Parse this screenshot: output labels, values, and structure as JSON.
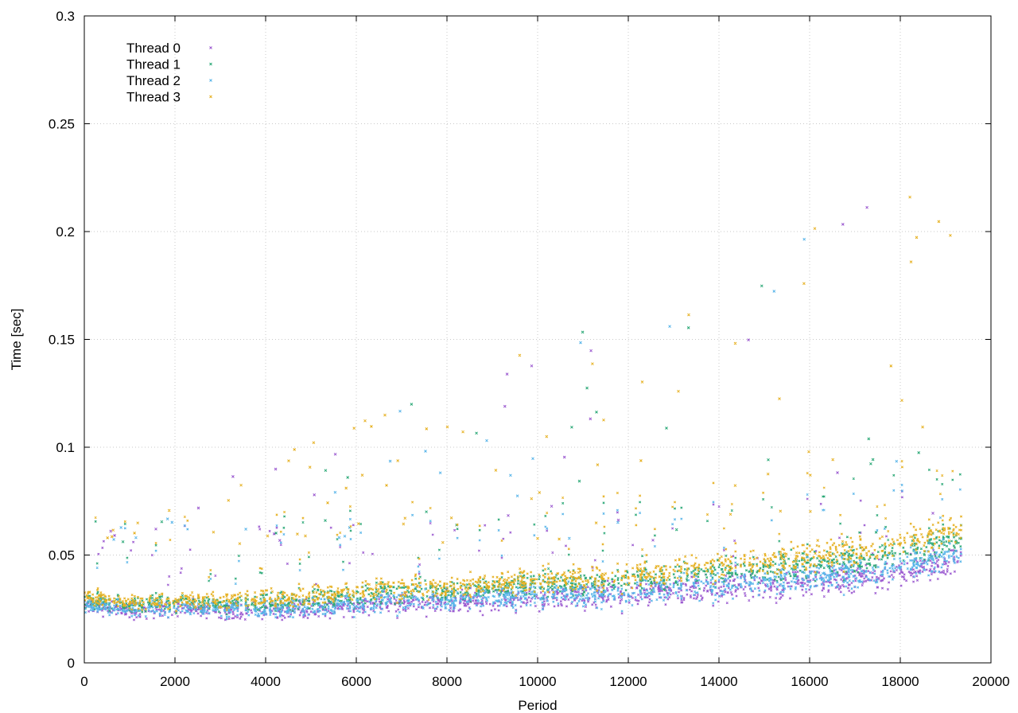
{
  "chart_data": {
    "type": "scatter",
    "title": "",
    "xlabel": "Period",
    "ylabel": "Time [sec]",
    "xlim": [
      0,
      20000
    ],
    "ylim": [
      0,
      0.3
    ],
    "x_ticks": [
      "0",
      "2000",
      "4000",
      "6000",
      "8000",
      "10000",
      "12000",
      "14000",
      "16000",
      "18000",
      "20000"
    ],
    "y_ticks": [
      "0",
      "0.05",
      "0.1",
      "0.15",
      "0.2",
      "0.25",
      "0.3"
    ],
    "grid": true,
    "legend_position": "top-left",
    "marker": "small cross",
    "series": [
      {
        "name": "Thread 0",
        "color": "#9b59d0",
        "x_range": [
          0,
          19350
        ],
        "points": [
          [
            0,
            0.027
          ],
          [
            1000,
            0.024
          ],
          [
            2000,
            0.025
          ],
          [
            3000,
            0.024
          ],
          [
            4000,
            0.024
          ],
          [
            5000,
            0.025
          ],
          [
            6000,
            0.026
          ],
          [
            7000,
            0.028
          ],
          [
            8000,
            0.028
          ],
          [
            9000,
            0.029
          ],
          [
            10000,
            0.03
          ],
          [
            11000,
            0.031
          ],
          [
            12000,
            0.032
          ],
          [
            13000,
            0.033
          ],
          [
            14000,
            0.035
          ],
          [
            15000,
            0.036
          ],
          [
            16000,
            0.037
          ],
          [
            17000,
            0.039
          ],
          [
            18000,
            0.042
          ],
          [
            19000,
            0.046
          ],
          [
            19350,
            0.048
          ]
        ]
      },
      {
        "name": "Thread 1",
        "color": "#2aa876",
        "x_range": [
          0,
          19350
        ],
        "points": [
          [
            0,
            0.029
          ],
          [
            1000,
            0.027
          ],
          [
            2000,
            0.028
          ],
          [
            3000,
            0.027
          ],
          [
            4000,
            0.028
          ],
          [
            5000,
            0.029
          ],
          [
            6000,
            0.031
          ],
          [
            7000,
            0.033
          ],
          [
            8000,
            0.033
          ],
          [
            9000,
            0.035
          ],
          [
            10000,
            0.036
          ],
          [
            11000,
            0.037
          ],
          [
            12000,
            0.038
          ],
          [
            13000,
            0.04
          ],
          [
            14000,
            0.042
          ],
          [
            15000,
            0.044
          ],
          [
            16000,
            0.045
          ],
          [
            17000,
            0.048
          ],
          [
            18000,
            0.052
          ],
          [
            19000,
            0.056
          ],
          [
            19350,
            0.058
          ]
        ]
      },
      {
        "name": "Thread 2",
        "color": "#56b4e9",
        "x_range": [
          0,
          19350
        ],
        "points": [
          [
            0,
            0.027
          ],
          [
            1000,
            0.025
          ],
          [
            2000,
            0.025
          ],
          [
            3000,
            0.025
          ],
          [
            4000,
            0.025
          ],
          [
            5000,
            0.026
          ],
          [
            6000,
            0.027
          ],
          [
            7000,
            0.029
          ],
          [
            8000,
            0.029
          ],
          [
            9000,
            0.03
          ],
          [
            10000,
            0.031
          ],
          [
            11000,
            0.032
          ],
          [
            12000,
            0.033
          ],
          [
            13000,
            0.035
          ],
          [
            14000,
            0.036
          ],
          [
            15000,
            0.038
          ],
          [
            16000,
            0.039
          ],
          [
            17000,
            0.041
          ],
          [
            18000,
            0.045
          ],
          [
            19000,
            0.049
          ],
          [
            19350,
            0.051
          ]
        ]
      },
      {
        "name": "Thread 3",
        "color": "#e6b020",
        "x_range": [
          0,
          19350
        ],
        "points": [
          [
            0,
            0.031
          ],
          [
            1000,
            0.028
          ],
          [
            2000,
            0.029
          ],
          [
            3000,
            0.029
          ],
          [
            4000,
            0.03
          ],
          [
            5000,
            0.031
          ],
          [
            6000,
            0.033
          ],
          [
            7000,
            0.035
          ],
          [
            8000,
            0.035
          ],
          [
            9000,
            0.037
          ],
          [
            10000,
            0.038
          ],
          [
            11000,
            0.04
          ],
          [
            12000,
            0.041
          ],
          [
            13000,
            0.043
          ],
          [
            14000,
            0.045
          ],
          [
            15000,
            0.047
          ],
          [
            16000,
            0.049
          ],
          [
            17000,
            0.052
          ],
          [
            18000,
            0.056
          ],
          [
            19000,
            0.06
          ],
          [
            19350,
            0.062
          ]
        ]
      }
    ]
  }
}
